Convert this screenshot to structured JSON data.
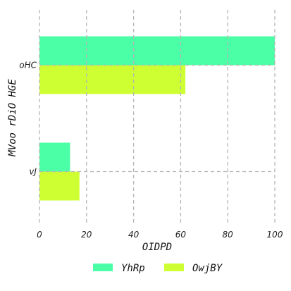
{
  "chart_data": {
    "type": "bar",
    "orientation": "horizontal",
    "categories": [
      "oHC",
      "vJ"
    ],
    "series": [
      {
        "name": "YhRp",
        "values": [
          100,
          13
        ],
        "color": "#4bffa7"
      },
      {
        "name": "OwjBY",
        "values": [
          62,
          17
        ],
        "color": "#cdff33"
      }
    ],
    "xlabel": "OIDPD",
    "ylabel": "MVoo rDiO HGE",
    "xlim": [
      0,
      100
    ],
    "xticks": [
      0,
      20,
      40,
      60,
      80,
      100
    ],
    "grid": true,
    "legend_position": "bottom"
  }
}
